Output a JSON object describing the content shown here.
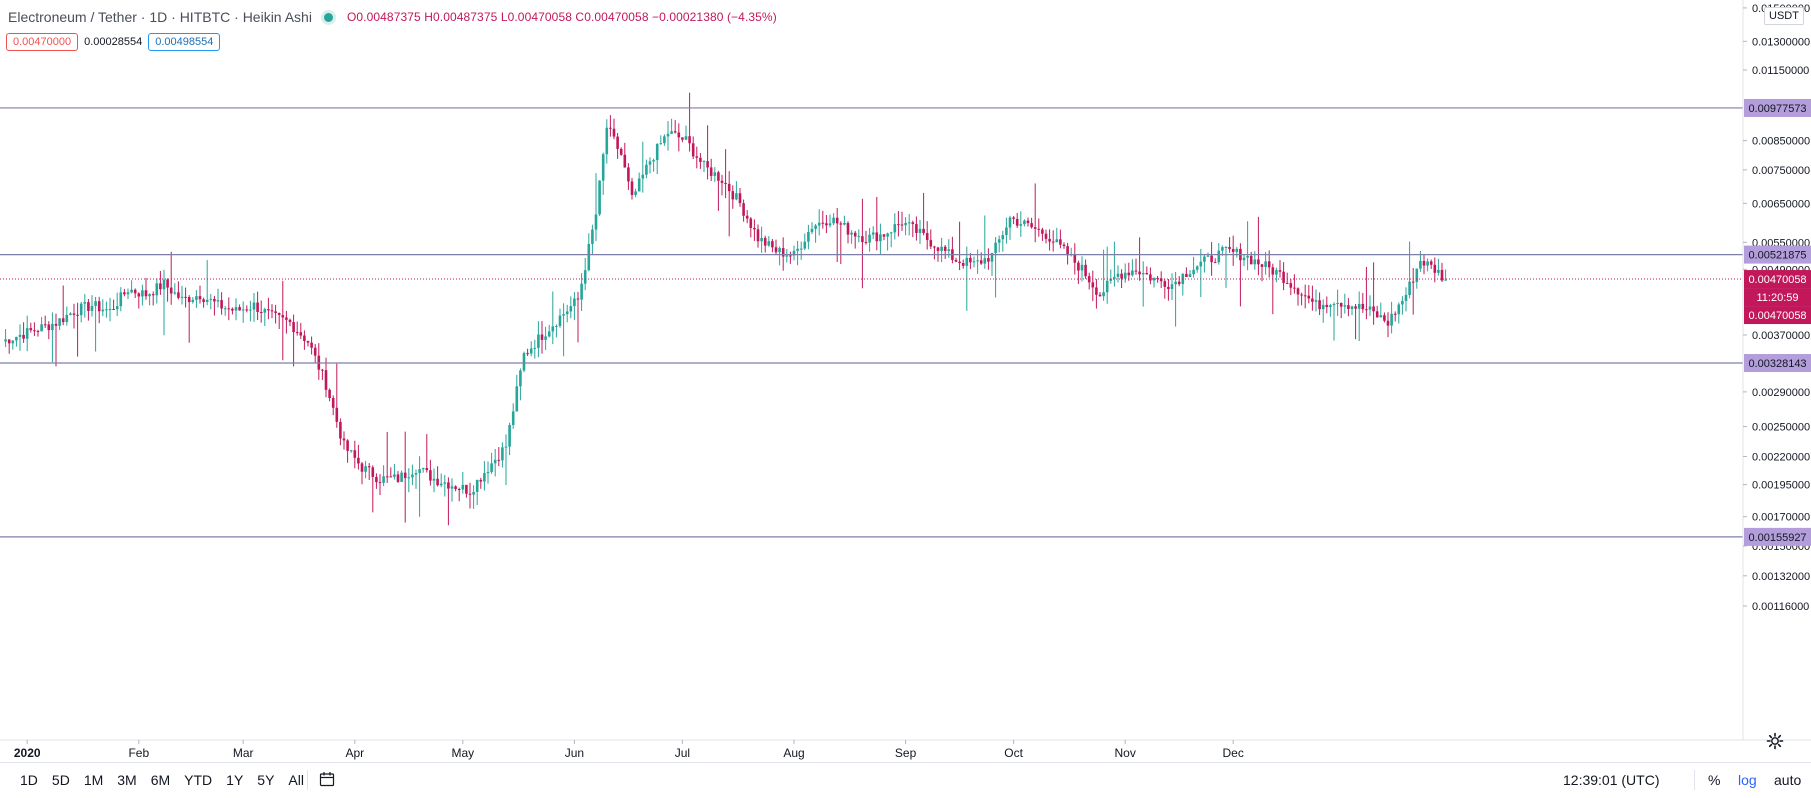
{
  "header": {
    "title": "Electroneum / Tether · 1D · HITBTC · Heikin Ashi",
    "ohlc": "O0.00487375 H0.00487375 L0.00470058 C0.00470058 −0.00021380 (−4.35%)"
  },
  "quote": {
    "sell": "0.00470000",
    "spread": "0.00028554",
    "buy": "0.00498554"
  },
  "currency_label": "USDT",
  "bottom_bar": {
    "ranges": [
      "1D",
      "5D",
      "1M",
      "3M",
      "6M",
      "YTD",
      "1Y",
      "5Y",
      "All"
    ],
    "clock": "12:39:01 (UTC)",
    "percent": "%",
    "log": "log",
    "auto": "auto"
  },
  "colors": {
    "up": "#26a69a",
    "down": "#c2185b",
    "hline": "#7e7fa8",
    "label_bg": "#b39ddb"
  },
  "chart_data": {
    "type": "candlestick",
    "chart_style": "Heikin Ashi",
    "symbol": "Electroneum / Tether",
    "interval": "1D",
    "exchange": "HITBTC",
    "y_scale": "log",
    "ylim": [
      0.00105,
      0.0165
    ],
    "x_tick_labels": [
      "2020",
      "Feb",
      "Mar",
      "Apr",
      "May",
      "Jun",
      "Jul",
      "Aug",
      "Sep",
      "Oct",
      "Nov",
      "Dec"
    ],
    "y_tick_labels": [
      "0.01500000",
      "0.01300000",
      "0.01150000",
      "0.00850000",
      "0.00750000",
      "0.00650000",
      "0.00550000",
      "0.00490000",
      "0.00370000",
      "0.00290000",
      "0.00250000",
      "0.00220000",
      "0.00195000",
      "0.00170000",
      "0.00150000",
      "0.00132000",
      "0.00116000"
    ],
    "horizontal_levels": [
      0.00977573,
      0.00521875,
      0.00328143,
      0.00155927
    ],
    "last_price": "0.00470058",
    "countdown": "11:20:59",
    "price_labels": [
      "0.00977573",
      "0.00521875",
      "0.00470058",
      "0.00328143",
      "0.00155927"
    ],
    "anchors": [
      [
        0,
        0.0036
      ],
      [
        5,
        0.0037
      ],
      [
        10,
        0.0038
      ],
      [
        15,
        0.0039
      ],
      [
        20,
        0.0041
      ],
      [
        25,
        0.0042
      ],
      [
        30,
        0.0041
      ],
      [
        35,
        0.0045
      ],
      [
        40,
        0.0044
      ],
      [
        45,
        0.0046
      ],
      [
        50,
        0.0043
      ],
      [
        55,
        0.0044
      ],
      [
        60,
        0.0042
      ],
      [
        65,
        0.0041
      ],
      [
        70,
        0.0042
      ],
      [
        75,
        0.004
      ],
      [
        80,
        0.0039
      ],
      [
        85,
        0.0036
      ],
      [
        90,
        0.003
      ],
      [
        95,
        0.0023
      ],
      [
        100,
        0.0021
      ],
      [
        105,
        0.002
      ],
      [
        110,
        0.002
      ],
      [
        115,
        0.0021
      ],
      [
        120,
        0.002
      ],
      [
        125,
        0.00195
      ],
      [
        130,
        0.0019
      ],
      [
        135,
        0.0021
      ],
      [
        140,
        0.0023
      ],
      [
        145,
        0.0034
      ],
      [
        150,
        0.0037
      ],
      [
        155,
        0.004
      ],
      [
        160,
        0.0043
      ],
      [
        165,
        0.0062
      ],
      [
        168,
        0.009
      ],
      [
        172,
        0.008
      ],
      [
        175,
        0.0066
      ],
      [
        180,
        0.0078
      ],
      [
        185,
        0.0088
      ],
      [
        190,
        0.0085
      ],
      [
        195,
        0.0076
      ],
      [
        200,
        0.0072
      ],
      [
        205,
        0.0065
      ],
      [
        210,
        0.0056
      ],
      [
        215,
        0.0053
      ],
      [
        220,
        0.0052
      ],
      [
        225,
        0.0059
      ],
      [
        230,
        0.0061
      ],
      [
        235,
        0.0058
      ],
      [
        240,
        0.0056
      ],
      [
        245,
        0.0057
      ],
      [
        250,
        0.006
      ],
      [
        255,
        0.0057
      ],
      [
        260,
        0.0054
      ],
      [
        265,
        0.0051
      ],
      [
        270,
        0.005
      ],
      [
        275,
        0.0052
      ],
      [
        280,
        0.0061
      ],
      [
        285,
        0.0059
      ],
      [
        290,
        0.0057
      ],
      [
        295,
        0.0053
      ],
      [
        300,
        0.0049
      ],
      [
        305,
        0.0044
      ],
      [
        310,
        0.0048
      ],
      [
        315,
        0.0049
      ],
      [
        320,
        0.0047
      ],
      [
        325,
        0.0046
      ],
      [
        330,
        0.0049
      ],
      [
        335,
        0.0051
      ],
      [
        340,
        0.0053
      ],
      [
        345,
        0.0052
      ],
      [
        350,
        0.005
      ],
      [
        355,
        0.0048
      ],
      [
        360,
        0.0045
      ],
      [
        365,
        0.0042
      ],
      [
        370,
        0.0043
      ],
      [
        375,
        0.0042
      ],
      [
        380,
        0.0041
      ],
      [
        385,
        0.0039
      ],
      [
        390,
        0.0044
      ],
      [
        394,
        0.0051
      ],
      [
        398,
        0.0049
      ],
      [
        401,
        0.0047
      ]
    ]
  }
}
